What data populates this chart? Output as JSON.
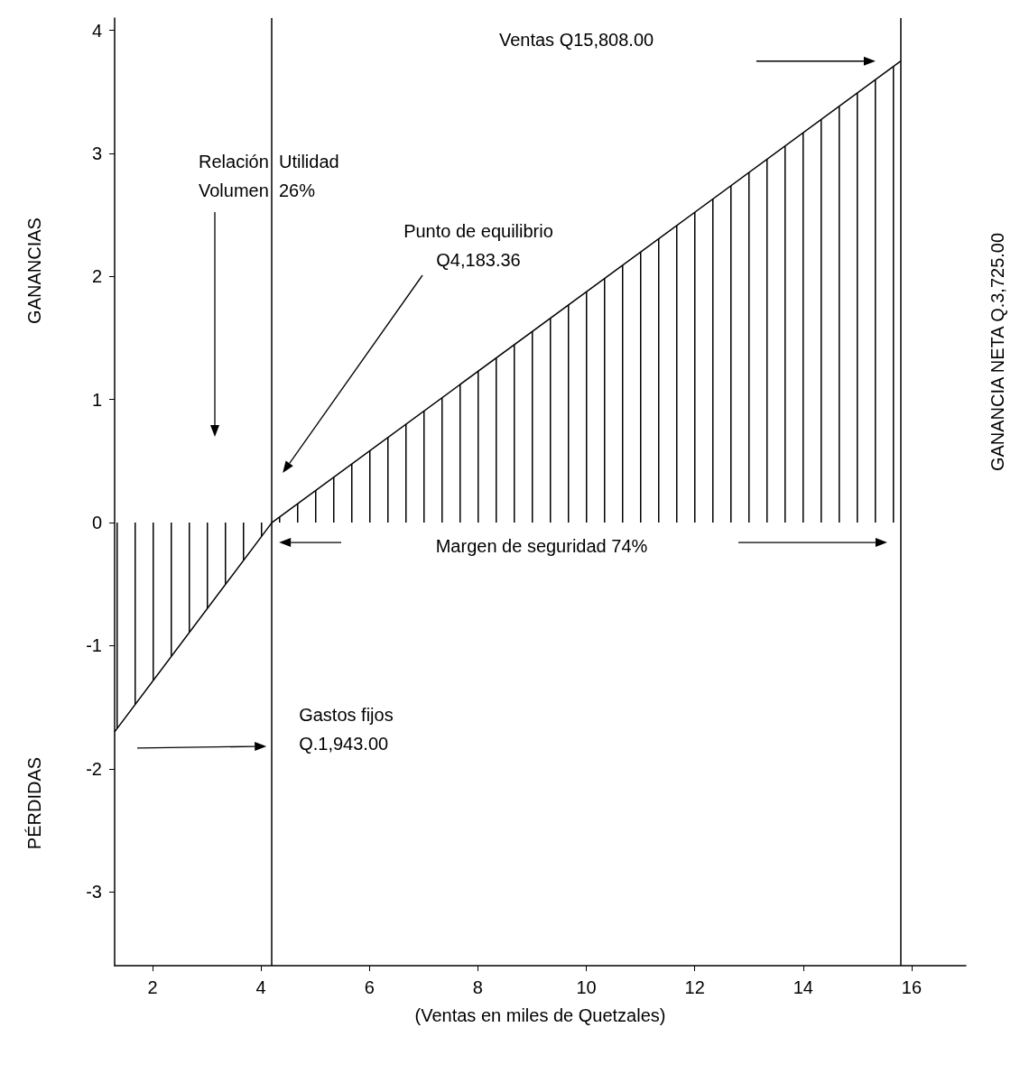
{
  "chart_data": {
    "type": "area",
    "xlabel": "(Ventas en miles de Quetzales)",
    "ylabel": "GANANCIAS",
    "x": [
      1.3,
      4.2,
      15.8
    ],
    "series": [
      {
        "color": "#000000",
        "values": [
          -1.7,
          0,
          3.75
        ]
      }
    ],
    "xlim": [
      1.3,
      17
    ],
    "xticks": [
      2,
      4,
      6,
      8,
      10,
      12,
      14,
      16
    ],
    "ylim": [
      -3.6,
      4.1
    ],
    "yticks": [
      -3,
      -2,
      -1,
      0,
      1,
      2,
      3,
      4
    ],
    "ref_lines": [
      {
        "axis": "x",
        "value": 4.2,
        "color": "#000000"
      },
      {
        "axis": "x",
        "value": 15.8,
        "color": "#000000"
      }
    ],
    "annotations": [
      "Ventas Q15,808.00",
      "Relación  Utilidad\nVolumen  26%",
      "Punto de equilibrio\nQ4,183.36",
      "Margen de seguridad 74%",
      "Gastos fijos\nQ.1,943.00",
      "GANANCIA NETA Q.3,725.00",
      "PÉRDIDAS"
    ],
    "grid": false,
    "marker": "none",
    "line_style": "solid"
  }
}
